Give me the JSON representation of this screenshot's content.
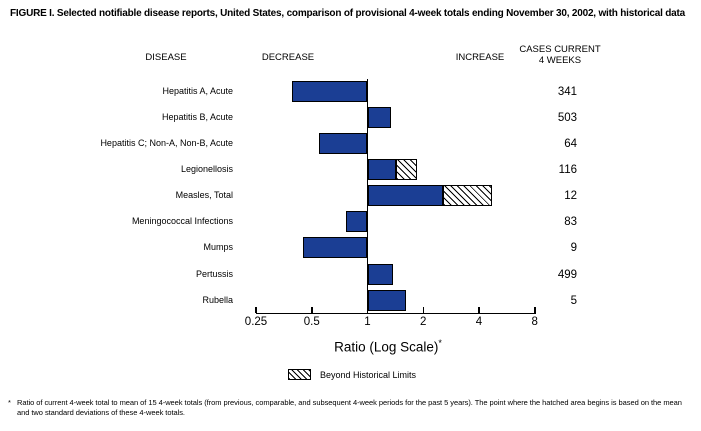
{
  "title": "FIGURE I. Selected notifiable disease reports, United States, comparison of provisional 4-week totals ending November 30, 2002, with historical data",
  "table_headers": {
    "disease": "DISEASE",
    "decrease": "DECREASE",
    "increase": "INCREASE",
    "cases_line1": "CASES CURRENT",
    "cases_line2": "4 WEEKS"
  },
  "chart_data": {
    "type": "bar",
    "orientation": "horizontal-diverging",
    "x_scale": "log2",
    "baseline_ratio": 1,
    "xlabel": "Ratio (Log Scale)",
    "xlabel_sup": "*",
    "x_ticks": [
      0.25,
      0.5,
      1,
      2,
      4,
      8
    ],
    "x_range": [
      0.25,
      8
    ],
    "grid": false,
    "bar_color": "#1b3e94",
    "legend": {
      "position": "bottom",
      "swatch": "diagonal-hatch",
      "label": "Beyond Historical Limits"
    },
    "rows": [
      {
        "disease": "Hepatitis A, Acute",
        "ratio": 0.39,
        "beyond_historical_limits_ratio": null,
        "cases_current_4_weeks": 341
      },
      {
        "disease": "Hepatitis B, Acute",
        "ratio": 1.34,
        "beyond_historical_limits_ratio": null,
        "cases_current_4_weeks": 503
      },
      {
        "disease": "Hepatitis C; Non-A, Non-B, Acute",
        "ratio": 0.55,
        "beyond_historical_limits_ratio": null,
        "cases_current_4_weeks": 64
      },
      {
        "disease": "Legionellosis",
        "ratio": 1.42,
        "beyond_historical_limits_ratio": 1.84,
        "cases_current_4_weeks": 116
      },
      {
        "disease": "Measles, Total",
        "ratio": 2.55,
        "beyond_historical_limits_ratio": 4.7,
        "cases_current_4_weeks": 12
      },
      {
        "disease": "Meningococcal Infections",
        "ratio": 0.77,
        "beyond_historical_limits_ratio": null,
        "cases_current_4_weeks": 83
      },
      {
        "disease": "Mumps",
        "ratio": 0.45,
        "beyond_historical_limits_ratio": null,
        "cases_current_4_weeks": 9
      },
      {
        "disease": "Pertussis",
        "ratio": 1.37,
        "beyond_historical_limits_ratio": null,
        "cases_current_4_weeks": 499
      },
      {
        "disease": "Rubella",
        "ratio": 1.62,
        "beyond_historical_limits_ratio": null,
        "cases_current_4_weeks": 5
      }
    ]
  },
  "footnote": {
    "marker": "*",
    "text": "Ratio of current 4-week total to mean of 15 4-week totals (from previous, comparable, and subsequent 4-week periods for the past 5 years). The point where the hatched area begins is based on the mean and two standard deviations of these 4-week totals."
  }
}
